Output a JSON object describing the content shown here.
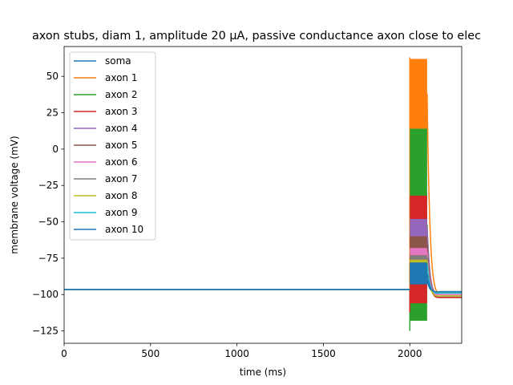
{
  "chart_data": {
    "type": "line",
    "title": "axon stubs, diam 1, amplitude 20 µA, passive conductance axon close to elec",
    "xlabel": "time (ms)",
    "ylabel": "membrane voltage (mV)",
    "xlim": [
      0,
      2300
    ],
    "ylim": [
      -133.5,
      70.5
    ],
    "x_ticks": [
      0,
      500,
      1000,
      1500,
      2000
    ],
    "x_tick_labels": [
      "0",
      "500",
      "1000",
      "1500",
      "2000"
    ],
    "y_ticks": [
      -125,
      -100,
      -75,
      -50,
      -25,
      0,
      25,
      50
    ],
    "y_tick_labels": [
      "−125",
      "−100",
      "−75",
      "−50",
      "−25",
      "0",
      "25",
      "50"
    ],
    "grid": false,
    "legend_position": "upper-left",
    "series": [
      {
        "name": "soma",
        "color": "#1f77b4",
        "baseline": -96.5,
        "band": [
          -95,
          -85
        ],
        "post": -98
      },
      {
        "name": "axon 1",
        "color": "#ff7f0e",
        "baseline": -96.5,
        "band": [
          14,
          62
        ],
        "post": -99,
        "spike": 63
      },
      {
        "name": "axon 2",
        "color": "#2ca02c",
        "baseline": -96.5,
        "band": [
          -118,
          14
        ],
        "post": -102,
        "spike": -125
      },
      {
        "name": "axon 3",
        "color": "#d62728",
        "baseline": -96.5,
        "band": [
          -106,
          -32
        ],
        "post": -102,
        "spike": -112
      },
      {
        "name": "axon 4",
        "color": "#9467bd",
        "baseline": -96.5,
        "band": [
          -60,
          -48
        ],
        "post": -100
      },
      {
        "name": "axon 5",
        "color": "#8c564b",
        "baseline": -96.5,
        "band": [
          -68,
          -60
        ],
        "post": -100
      },
      {
        "name": "axon 6",
        "color": "#e377c2",
        "baseline": -96.5,
        "band": [
          -73,
          -68
        ],
        "post": -100
      },
      {
        "name": "axon 7",
        "color": "#7f7f7f",
        "baseline": -96.5,
        "band": [
          -76,
          -73
        ],
        "post": -101
      },
      {
        "name": "axon 8",
        "color": "#bcbd22",
        "baseline": -96.5,
        "band": [
          -78,
          -76
        ],
        "post": -101
      },
      {
        "name": "axon 9",
        "color": "#17becf",
        "baseline": -96.5,
        "band": [
          -80,
          -78
        ],
        "post": -99
      },
      {
        "name": "axon 10",
        "color": "#1f77b4",
        "baseline": -96.5,
        "band": [
          -93,
          -78
        ],
        "post": -98
      }
    ],
    "stimulus_window": [
      2000,
      2100
    ]
  }
}
